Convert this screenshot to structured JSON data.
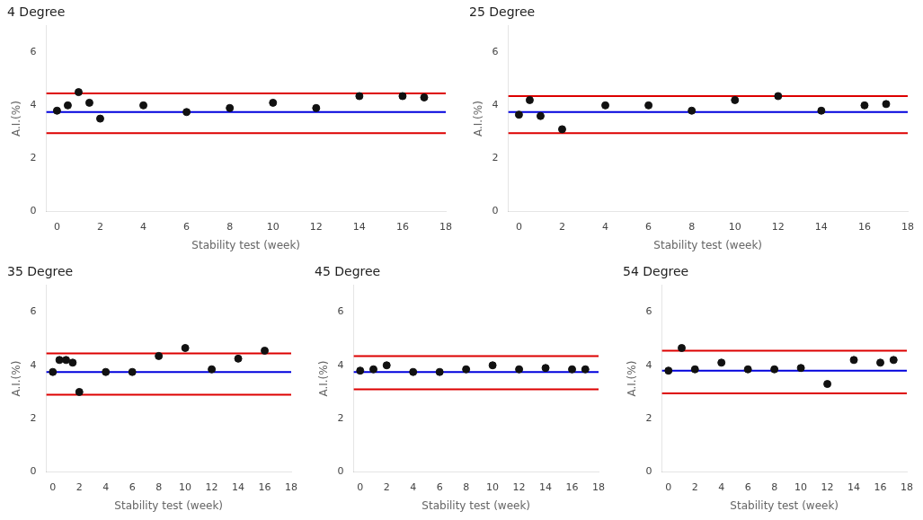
{
  "chart_data": [
    {
      "type": "scatter",
      "title": "4 Degree",
      "xlabel": "Stability test (week)",
      "ylabel": "A.I.(%)",
      "xlim": [
        -0.5,
        18
      ],
      "xticks": [
        0,
        2,
        4,
        6,
        8,
        10,
        12,
        14,
        16,
        18
      ],
      "ylim": [
        0,
        7
      ],
      "yticks": [
        0,
        2,
        4,
        6
      ],
      "grid": false,
      "series": [
        {
          "type": "scatter",
          "color": "#111111",
          "x": [
            0,
            0.5,
            1,
            1.5,
            2,
            4,
            6,
            8,
            10,
            12,
            14,
            16,
            17
          ],
          "values": [
            3.8,
            4.0,
            4.5,
            4.1,
            3.5,
            4.0,
            3.75,
            3.9,
            4.1,
            3.9,
            4.35,
            4.35,
            4.3
          ]
        },
        {
          "type": "hline",
          "color": "#0000dd",
          "values": [
            3.75
          ]
        },
        {
          "type": "hline",
          "color": "#dd0000",
          "values": [
            4.45
          ]
        },
        {
          "type": "hline",
          "color": "#dd0000",
          "values": [
            2.95
          ]
        }
      ]
    },
    {
      "type": "scatter",
      "title": "25 Degree",
      "xlabel": "Stability test (week)",
      "ylabel": "A.I.(%)",
      "xlim": [
        -0.5,
        18
      ],
      "xticks": [
        0,
        2,
        4,
        6,
        8,
        10,
        12,
        14,
        16,
        18
      ],
      "ylim": [
        0,
        7
      ],
      "yticks": [
        0,
        2,
        4,
        6
      ],
      "grid": false,
      "series": [
        {
          "type": "scatter",
          "color": "#111111",
          "x": [
            0,
            0.5,
            1,
            2,
            4,
            6,
            8,
            10,
            12,
            14,
            16,
            17
          ],
          "values": [
            3.65,
            4.2,
            3.6,
            3.1,
            4.0,
            4.0,
            3.8,
            4.2,
            4.35,
            3.8,
            4.0,
            4.05
          ]
        },
        {
          "type": "hline",
          "color": "#0000dd",
          "values": [
            3.75
          ]
        },
        {
          "type": "hline",
          "color": "#dd0000",
          "values": [
            4.35
          ]
        },
        {
          "type": "hline",
          "color": "#dd0000",
          "values": [
            2.95
          ]
        }
      ]
    },
    {
      "type": "scatter",
      "title": "35 Degree",
      "xlabel": "Stability test (week)",
      "ylabel": "A.I.(%)",
      "xlim": [
        -0.5,
        18
      ],
      "xticks": [
        0,
        2,
        4,
        6,
        8,
        10,
        12,
        14,
        16,
        18
      ],
      "ylim": [
        0,
        7
      ],
      "yticks": [
        0,
        2,
        4,
        6
      ],
      "grid": false,
      "series": [
        {
          "type": "scatter",
          "color": "#111111",
          "x": [
            0,
            0.5,
            1,
            1.5,
            2,
            4,
            6,
            8,
            10,
            12,
            14,
            16
          ],
          "values": [
            3.75,
            4.2,
            4.2,
            4.1,
            3.0,
            3.75,
            3.75,
            4.35,
            4.65,
            3.85,
            4.25,
            4.55
          ]
        },
        {
          "type": "hline",
          "color": "#0000dd",
          "values": [
            3.75
          ]
        },
        {
          "type": "hline",
          "color": "#dd0000",
          "values": [
            4.45
          ]
        },
        {
          "type": "hline",
          "color": "#dd0000",
          "values": [
            2.9
          ]
        }
      ]
    },
    {
      "type": "scatter",
      "title": "45 Degree",
      "xlabel": "Stability test (week)",
      "ylabel": "A.I.(%)",
      "xlim": [
        -0.5,
        18
      ],
      "xticks": [
        0,
        2,
        4,
        6,
        8,
        10,
        12,
        14,
        16,
        18
      ],
      "ylim": [
        0,
        7
      ],
      "yticks": [
        0,
        2,
        4,
        6
      ],
      "grid": false,
      "series": [
        {
          "type": "scatter",
          "color": "#111111",
          "x": [
            0,
            1,
            2,
            4,
            6,
            8,
            10,
            12,
            14,
            16,
            17
          ],
          "values": [
            3.8,
            3.85,
            4.0,
            3.75,
            3.75,
            3.85,
            4.0,
            3.85,
            3.9,
            3.85,
            3.85
          ]
        },
        {
          "type": "hline",
          "color": "#0000dd",
          "values": [
            3.75
          ]
        },
        {
          "type": "hline",
          "color": "#dd0000",
          "values": [
            4.35
          ]
        },
        {
          "type": "hline",
          "color": "#dd0000",
          "values": [
            3.1
          ]
        }
      ]
    },
    {
      "type": "scatter",
      "title": "54 Degree",
      "xlabel": "Stability test (week)",
      "ylabel": "A.I.(%)",
      "xlim": [
        -0.5,
        18
      ],
      "xticks": [
        0,
        2,
        4,
        6,
        8,
        10,
        12,
        14,
        16,
        18
      ],
      "ylim": [
        0,
        7
      ],
      "yticks": [
        0,
        2,
        4,
        6
      ],
      "grid": false,
      "series": [
        {
          "type": "scatter",
          "color": "#111111",
          "x": [
            0,
            1,
            2,
            4,
            6,
            8,
            10,
            12,
            14,
            16,
            17
          ],
          "values": [
            3.8,
            4.65,
            3.85,
            4.1,
            3.85,
            3.85,
            3.9,
            3.3,
            4.2,
            4.1,
            4.2
          ]
        },
        {
          "type": "hline",
          "color": "#0000dd",
          "values": [
            3.8
          ]
        },
        {
          "type": "hline",
          "color": "#dd0000",
          "values": [
            4.55
          ]
        },
        {
          "type": "hline",
          "color": "#dd0000",
          "values": [
            2.95
          ]
        }
      ]
    }
  ]
}
